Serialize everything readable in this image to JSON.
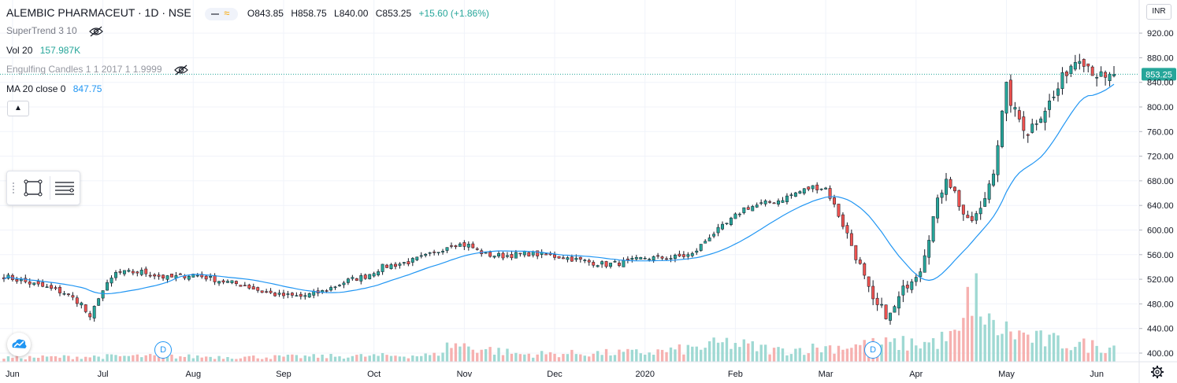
{
  "header": {
    "symbol": "ALEMBIC PHARMACEUT · 1D · NSE",
    "open": "O843.85",
    "high": "H858.75",
    "low": "L840.00",
    "close": "C853.25",
    "change": "+15.60 (+1.86%)"
  },
  "indicators": {
    "supertrend": "SuperTrend 3 10",
    "vol_name": "Vol 20",
    "vol_value": "157.987K",
    "engulfing": "Engulfing Candles 1 1 2017 1 1.9999",
    "ma_name": "MA 20 close 0",
    "ma_value": "847.75"
  },
  "currency": "INR",
  "dividend_marker": "D",
  "colors": {
    "up": "#26a69a",
    "down": "#ef5350",
    "ma": "#2196f3",
    "up_vol": "#9fd9d3",
    "down_vol": "#f6b1b0",
    "price_tag": "#26a69a"
  },
  "chart_data": {
    "type": "candlestick",
    "title": "ALEMBIC PHARMACEUT · 1D · NSE",
    "xlabel": "",
    "ylabel": "",
    "ylim": [
      390,
      935
    ],
    "y_ticks": [
      400,
      440,
      480,
      520,
      560,
      600,
      640,
      680,
      720,
      760,
      800,
      840,
      880,
      920
    ],
    "y_tick_labels": [
      "400.00",
      "440.00",
      "480.00",
      "520.00",
      "560.00",
      "600.00",
      "640.00",
      "680.00",
      "720.00",
      "760.00",
      "800.00",
      "840.00",
      "880.00",
      "920.00"
    ],
    "x_labels": [
      {
        "label": "Jun",
        "index": 2
      },
      {
        "label": "Jul",
        "index": 23
      },
      {
        "label": "Aug",
        "index": 44
      },
      {
        "label": "Sep",
        "index": 65
      },
      {
        "label": "Oct",
        "index": 86
      },
      {
        "label": "Nov",
        "index": 107
      },
      {
        "label": "Dec",
        "index": 128
      },
      {
        "label": "2020",
        "index": 149
      },
      {
        "label": "Feb",
        "index": 170
      },
      {
        "label": "Mar",
        "index": 191
      },
      {
        "label": "Apr",
        "index": 212
      },
      {
        "label": "May",
        "index": 233
      },
      {
        "label": "Jun",
        "index": 254
      }
    ],
    "last_price": 853.25,
    "last_price_label": "853.25",
    "dividend_markers": [
      37,
      202
    ],
    "anchors": [
      [
        0,
        525
      ],
      [
        8,
        510
      ],
      [
        14,
        498
      ],
      [
        18,
        480
      ],
      [
        20,
        455
      ],
      [
        22,
        492
      ],
      [
        26,
        530
      ],
      [
        32,
        532
      ],
      [
        38,
        522
      ],
      [
        44,
        528
      ],
      [
        50,
        518
      ],
      [
        56,
        510
      ],
      [
        60,
        500
      ],
      [
        64,
        494
      ],
      [
        69,
        492
      ],
      [
        74,
        500
      ],
      [
        80,
        518
      ],
      [
        84,
        525
      ],
      [
        88,
        540
      ],
      [
        94,
        548
      ],
      [
        100,
        562
      ],
      [
        104,
        578
      ],
      [
        108,
        575
      ],
      [
        112,
        560
      ],
      [
        116,
        558
      ],
      [
        122,
        562
      ],
      [
        130,
        556
      ],
      [
        136,
        548
      ],
      [
        140,
        544
      ],
      [
        145,
        548
      ],
      [
        149,
        555
      ],
      [
        155,
        555
      ],
      [
        160,
        560
      ],
      [
        164,
        590
      ],
      [
        168,
        610
      ],
      [
        172,
        635
      ],
      [
        176,
        642
      ],
      [
        180,
        648
      ],
      [
        184,
        660
      ],
      [
        188,
        670
      ],
      [
        191,
        668
      ],
      [
        193,
        640
      ],
      [
        198,
        560
      ],
      [
        202,
        480
      ],
      [
        206,
        460
      ],
      [
        210,
        515
      ],
      [
        213,
        540
      ],
      [
        216,
        620
      ],
      [
        219,
        690
      ],
      [
        221,
        660
      ],
      [
        224,
        610
      ],
      [
        227,
        630
      ],
      [
        230,
        700
      ],
      [
        233,
        830
      ],
      [
        235,
        790
      ],
      [
        238,
        760
      ],
      [
        241,
        790
      ],
      [
        244,
        815
      ],
      [
        247,
        860
      ],
      [
        250,
        885
      ],
      [
        253,
        860
      ],
      [
        256,
        842
      ],
      [
        258,
        853.25
      ]
    ],
    "volume_anchors": [
      [
        0,
        0.22
      ],
      [
        30,
        0.3
      ],
      [
        60,
        0.25
      ],
      [
        100,
        0.35
      ],
      [
        104,
        0.95
      ],
      [
        120,
        0.4
      ],
      [
        150,
        0.5
      ],
      [
        160,
        0.7
      ],
      [
        168,
        1.0
      ],
      [
        180,
        0.6
      ],
      [
        200,
        0.9
      ],
      [
        215,
        1.0
      ],
      [
        222,
        1.4
      ],
      [
        226,
        4.5
      ],
      [
        228,
        2.0
      ],
      [
        240,
        1.2
      ],
      [
        250,
        0.9
      ],
      [
        258,
        0.8
      ]
    ],
    "ma_period": 20,
    "num_bars": 259,
    "volume_unit": "relative (average = 1)"
  }
}
